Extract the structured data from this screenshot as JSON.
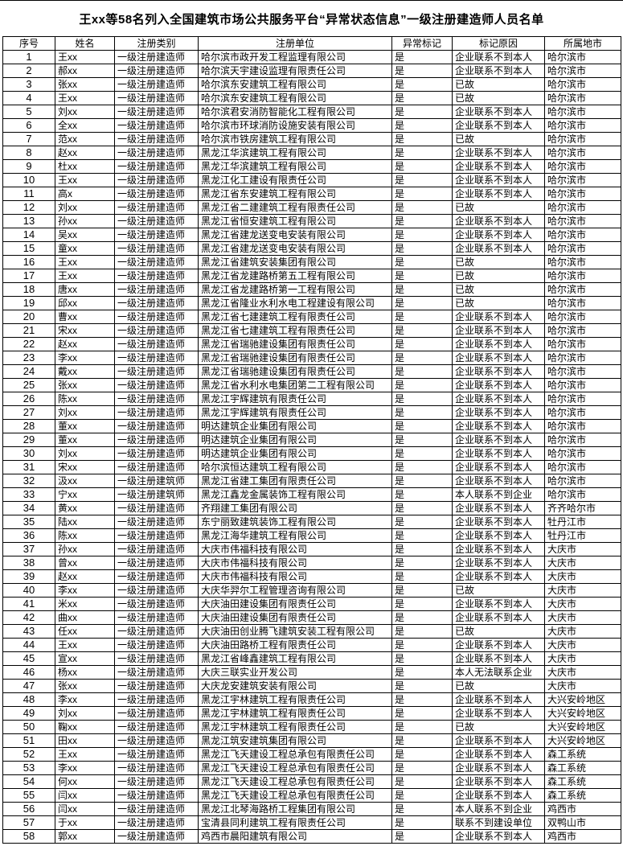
{
  "page": {
    "title": "王xx等58名列入全国建筑市场公共服务平台“异常状态信息”一级注册建造师人员名单"
  },
  "colors": {
    "background": "#ffffff",
    "text": "#000000",
    "border": "#000000"
  },
  "table": {
    "headers": [
      "序号",
      "姓名",
      "注册类别",
      "注册单位",
      "异常标记",
      "标记原因",
      "所属地市"
    ],
    "rows": [
      [
        "1",
        "王xx",
        "一级注册建造师",
        "哈尔滨市政开发工程监理有限公司",
        "是",
        "企业联系不到本人",
        "哈尔滨市"
      ],
      [
        "2",
        "郝xx",
        "一级注册建造师",
        "哈尔滨天宇建设监理有限责任公司",
        "是",
        "企业联系不到本人",
        "哈尔滨市"
      ],
      [
        "3",
        "张xx",
        "一级注册建造师",
        "哈尔滨东安建筑工程有限公司",
        "是",
        "已故",
        "哈尔滨市"
      ],
      [
        "4",
        "王xx",
        "一级注册建造师",
        "哈尔滨东安建筑工程有限公司",
        "是",
        "已故",
        "哈尔滨市"
      ],
      [
        "5",
        "刘xx",
        "一级注册建造师",
        "哈尔滨君安消防智能化工程有限公司",
        "是",
        "企业联系不到本人",
        "哈尔滨市"
      ],
      [
        "6",
        "全xx",
        "一级注册建造师",
        "哈尔滨市环球消防设施安装有限公司",
        "是",
        "企业联系不到本人",
        "哈尔滨市"
      ],
      [
        "7",
        "范xx",
        "一级注册建造师",
        "哈尔滨市铁房建筑工程有限公司",
        "是",
        "已故",
        "哈尔滨市"
      ],
      [
        "8",
        "赵xx",
        "一级注册建造师",
        "黑龙江华滨建筑工程有限公司",
        "是",
        "企业联系不到本人",
        "哈尔滨市"
      ],
      [
        "9",
        "杜xx",
        "一级注册建造师",
        "黑龙江华滨建筑工程有限公司",
        "是",
        "企业联系不到本人",
        "哈尔滨市"
      ],
      [
        "10",
        "王xx",
        "一级注册建造师",
        "黑龙江化工建设有限责任公司",
        "是",
        "企业联系不到本人",
        "哈尔滨市"
      ],
      [
        "11",
        "高x",
        "一级注册建造师",
        "黑龙江省东安建筑工程有限公司",
        "是",
        "企业联系不到本人",
        "哈尔滨市"
      ],
      [
        "12",
        "刘xx",
        "一级注册建造师",
        "黑龙江省二建建筑工程有限责任公司",
        "是",
        "已故",
        "哈尔滨市"
      ],
      [
        "13",
        "孙xx",
        "一级注册建造师",
        "黑龙江省恒安建筑工程有限公司",
        "是",
        "企业联系不到本人",
        "哈尔滨市"
      ],
      [
        "14",
        "吴xx",
        "一级注册建造师",
        "黑龙江省建龙送变电安装有限公司",
        "是",
        "企业联系不到本人",
        "哈尔滨市"
      ],
      [
        "15",
        "童xx",
        "一级注册建造师",
        "黑龙江省建龙送变电安装有限公司",
        "是",
        "企业联系不到本人",
        "哈尔滨市"
      ],
      [
        "16",
        "王xx",
        "一级注册建造师",
        "黑龙江省建筑安装集团有限公司",
        "是",
        "已故",
        "哈尔滨市"
      ],
      [
        "17",
        "王xx",
        "一级注册建造师",
        "黑龙江省龙建路桥第五工程有限公司",
        "是",
        "已故",
        "哈尔滨市"
      ],
      [
        "18",
        "唐xx",
        "一级注册建造师",
        "黑龙江省龙建路桥第一工程有限公司",
        "是",
        "已故",
        "哈尔滨市"
      ],
      [
        "19",
        "邱xx",
        "一级注册建造师",
        "黑龙江省隆业水利水电工程建设有限公司",
        "是",
        "已故",
        "哈尔滨市"
      ],
      [
        "20",
        "曹xx",
        "一级注册建造师",
        "黑龙江省七建建筑工程有限责任公司",
        "是",
        "企业联系不到本人",
        "哈尔滨市"
      ],
      [
        "21",
        "宋xx",
        "一级注册建造师",
        "黑龙江省七建建筑工程有限责任公司",
        "是",
        "企业联系不到本人",
        "哈尔滨市"
      ],
      [
        "22",
        "赵xx",
        "一级注册建造师",
        "黑龙江省瑞驰建设集团有限责任公司",
        "是",
        "企业联系不到本人",
        "哈尔滨市"
      ],
      [
        "23",
        "李xx",
        "一级注册建造师",
        "黑龙江省瑞驰建设集团有限责任公司",
        "是",
        "企业联系不到本人",
        "哈尔滨市"
      ],
      [
        "24",
        "戴xx",
        "一级注册建造师",
        "黑龙江省瑞驰建设集团有限责任公司",
        "是",
        "企业联系不到本人",
        "哈尔滨市"
      ],
      [
        "25",
        "张xx",
        "一级注册建造师",
        "黑龙江省水利水电集团第二工程有限公司",
        "是",
        "企业联系不到本人",
        "哈尔滨市"
      ],
      [
        "26",
        "陈xx",
        "一级注册建造师",
        "黑龙江宇辉建筑有限责任公司",
        "是",
        "企业联系不到本人",
        "哈尔滨市"
      ],
      [
        "27",
        "刘xx",
        "一级注册建造师",
        "黑龙江宇辉建筑有限责任公司",
        "是",
        "企业联系不到本人",
        "哈尔滨市"
      ],
      [
        "28",
        "董xx",
        "一级注册建造师",
        "明达建筑企业集团有限公司",
        "是",
        "企业联系不到本人",
        "哈尔滨市"
      ],
      [
        "29",
        "董xx",
        "一级注册建造师",
        "明达建筑企业集团有限公司",
        "是",
        "企业联系不到本人",
        "哈尔滨市"
      ],
      [
        "30",
        "刘xx",
        "一级注册建造师",
        "明达建筑企业集团有限公司",
        "是",
        "企业联系不到本人",
        "哈尔滨市"
      ],
      [
        "31",
        "宋xx",
        "一级注册建造师",
        "哈尔滨恒达建筑工程有限公司",
        "是",
        "企业联系不到本人",
        "哈尔滨市"
      ],
      [
        "32",
        "汲xx",
        "一级注册建筑师",
        "黑龙江省建工集团有限责任公司",
        "是",
        "企业联系不到本人",
        "哈尔滨市"
      ],
      [
        "33",
        "宁xx",
        "一级注册建筑师",
        "黑龙江鑫龙金属装饰工程有限公司",
        "是",
        "本人联系不到企业",
        "哈尔滨市"
      ],
      [
        "34",
        "黄xx",
        "一级注册建造师",
        "齐翔建工集团有限公司",
        "是",
        "企业联系不到本人",
        "齐齐哈尔市"
      ],
      [
        "35",
        "陆xx",
        "一级注册建造师",
        "东宁丽致建筑装饰工程有限公司",
        "是",
        "企业联系不到本人",
        "牡丹江市"
      ],
      [
        "36",
        "陈xx",
        "一级注册建造师",
        "黑龙江海华建筑工程有限公司",
        "是",
        "企业联系不到本人",
        "牡丹江市"
      ],
      [
        "37",
        "孙xx",
        "一级注册建造师",
        "大庆市伟福科技有限公司",
        "是",
        "企业联系不到本人",
        "大庆市"
      ],
      [
        "38",
        "曾xx",
        "一级注册建造师",
        "大庆市伟福科技有限公司",
        "是",
        "企业联系不到本人",
        "大庆市"
      ],
      [
        "39",
        "赵xx",
        "一级注册建造师",
        "大庆市伟福科技有限公司",
        "是",
        "企业联系不到本人",
        "大庆市"
      ],
      [
        "40",
        "李xx",
        "一级注册建造师",
        "大庆华羿尔工程管理咨询有限公司",
        "是",
        "已故",
        "大庆市"
      ],
      [
        "41",
        "米xx",
        "一级注册建造师",
        "大庆油田建设集团有限责任公司",
        "是",
        "企业联系不到本人",
        "大庆市"
      ],
      [
        "42",
        "曲xx",
        "一级注册建造师",
        "大庆油田建设集团有限责任公司",
        "是",
        "企业联系不到本人",
        "大庆市"
      ],
      [
        "43",
        "任xx",
        "一级注册建造师",
        "大庆油田创业腾飞建筑安装工程有限公司",
        "是",
        "已故",
        "大庆市"
      ],
      [
        "44",
        "王xx",
        "一级注册建造师",
        "大庆油田路桥工程有限责任公司",
        "是",
        "企业联系不到本人",
        "大庆市"
      ],
      [
        "45",
        "宣xx",
        "一级注册建造师",
        "黑龙江省峰鑫建筑工程有限公司",
        "是",
        "企业联系不到本人",
        "大庆市"
      ],
      [
        "46",
        "杨xx",
        "一级注册建造师",
        "大庆三联实业开发公司",
        "是",
        "本人无法联系企业",
        "大庆市"
      ],
      [
        "47",
        "张xx",
        "一级注册建造师",
        "大庆龙安建筑安装有限公司",
        "是",
        "已故",
        "大庆市"
      ],
      [
        "48",
        "李xx",
        "一级注册建造师",
        "黑龙江宇林建筑工程有限责任公司",
        "是",
        "企业联系不到本人",
        "大兴安岭地区"
      ],
      [
        "49",
        "刘xx",
        "一级注册建造师",
        "黑龙江宇林建筑工程有限责任公司",
        "是",
        "企业联系不到本人",
        "大兴安岭地区"
      ],
      [
        "50",
        "鞠xx",
        "一级注册建造师",
        "黑龙江宇林建筑工程有限责任公司",
        "是",
        "已故",
        "大兴安岭地区"
      ],
      [
        "51",
        "田xx",
        "一级注册建造师",
        "黑龙江筑安建筑集团有限公司",
        "是",
        "企业联系不到本人",
        "大兴安岭地区"
      ],
      [
        "52",
        "王xx",
        "一级注册建造师",
        "黑龙江飞天建设工程总承包有限责任公司",
        "是",
        "企业联系不到本人",
        "森工系统"
      ],
      [
        "53",
        "李xx",
        "一级注册建造师",
        "黑龙江飞天建设工程总承包有限责任公司",
        "是",
        "企业联系不到本人",
        "森工系统"
      ],
      [
        "54",
        "何xx",
        "一级注册建造师",
        "黑龙江飞天建设工程总承包有限责任公司",
        "是",
        "企业联系不到本人",
        "森工系统"
      ],
      [
        "55",
        "闫xx",
        "一级注册建造师",
        "黑龙江飞天建设工程总承包有限责任公司",
        "是",
        "企业联系不到本人",
        "森工系统"
      ],
      [
        "56",
        "闫xx",
        "一级注册建造师",
        "黑龙江北琴海路桥工程集团有限公司",
        "是",
        "本人联系不到企业",
        "鸡西市"
      ],
      [
        "57",
        "于xx",
        "一级注册建造师",
        "宝清县同利建筑工程有限责任公司",
        "是",
        "联系不到建设单位",
        "双鸭山市"
      ],
      [
        "58",
        "郭xx",
        "一级注册建造师",
        "鸡西市晨阳建筑有限公司",
        "是",
        "企业联系不到本人",
        "鸡西市"
      ]
    ]
  }
}
